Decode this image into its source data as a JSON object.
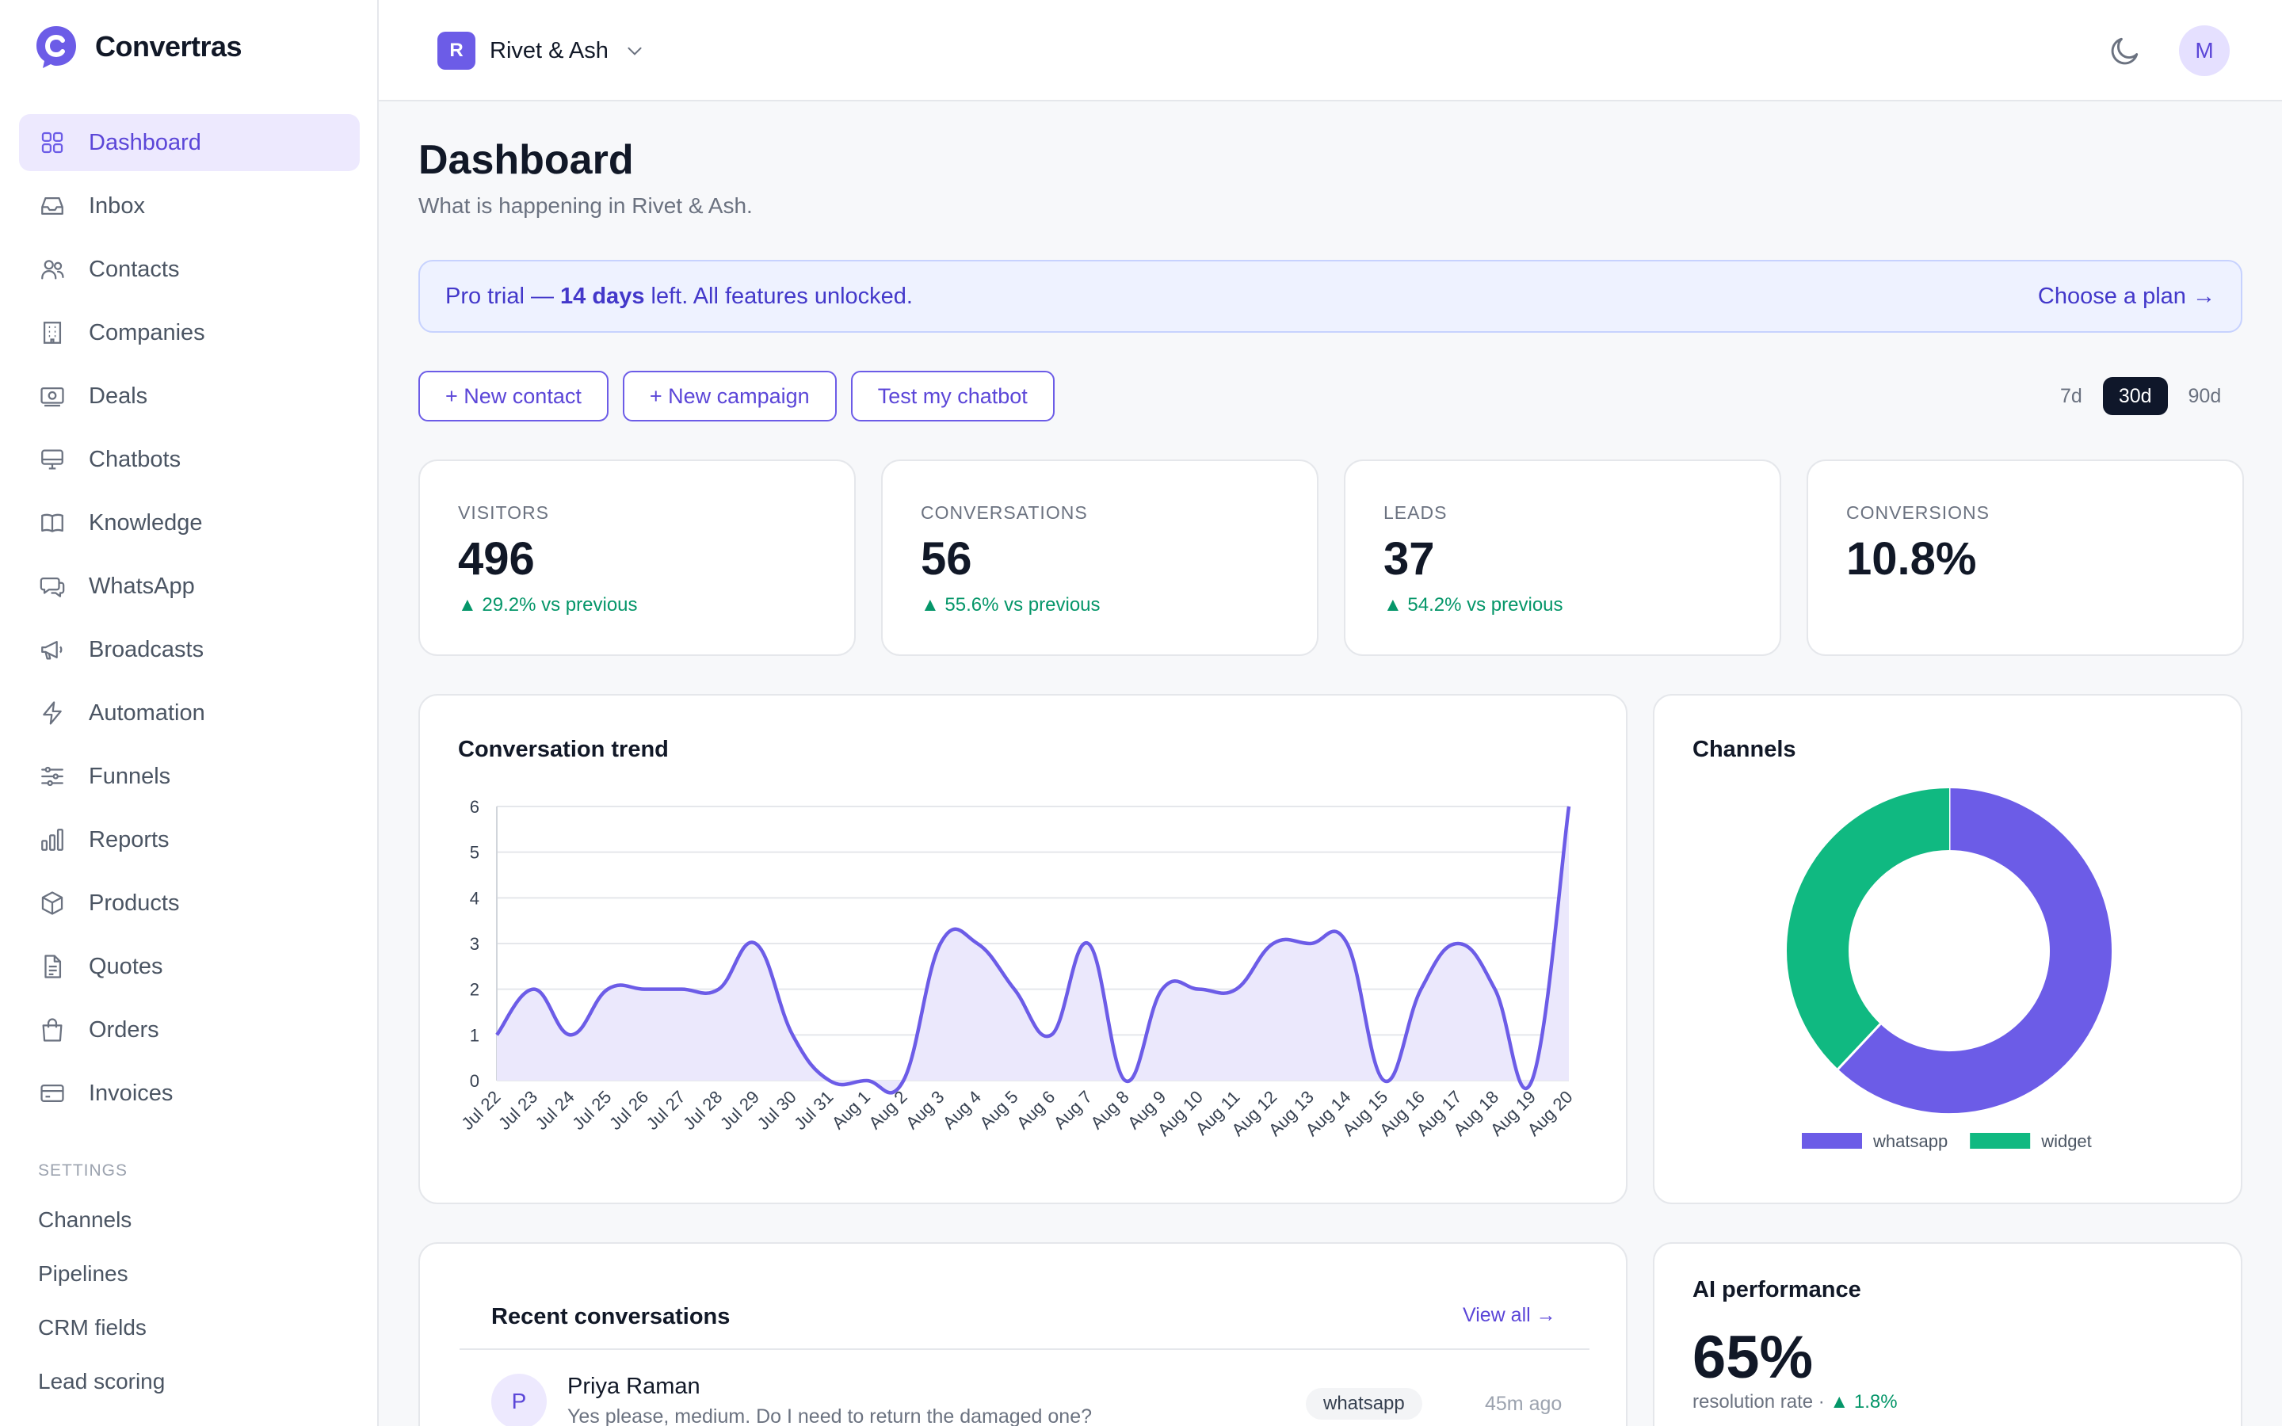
{
  "brand": {
    "name": "Convertras"
  },
  "sidebar": {
    "items": [
      {
        "label": "Dashboard",
        "icon": "grid-icon",
        "active": true
      },
      {
        "label": "Inbox",
        "icon": "inbox-icon"
      },
      {
        "label": "Contacts",
        "icon": "users-icon"
      },
      {
        "label": "Companies",
        "icon": "building-icon"
      },
      {
        "label": "Deals",
        "icon": "banknote-icon"
      },
      {
        "label": "Chatbots",
        "icon": "monitor-icon"
      },
      {
        "label": "Knowledge",
        "icon": "book-icon"
      },
      {
        "label": "WhatsApp",
        "icon": "chat-bubble-icon"
      },
      {
        "label": "Broadcasts",
        "icon": "megaphone-icon"
      },
      {
        "label": "Automation",
        "icon": "lightning-icon"
      },
      {
        "label": "Funnels",
        "icon": "sliders-icon"
      },
      {
        "label": "Reports",
        "icon": "bar-chart-icon"
      },
      {
        "label": "Products",
        "icon": "box-icon"
      },
      {
        "label": "Quotes",
        "icon": "document-icon"
      },
      {
        "label": "Orders",
        "icon": "shopping-bag-icon"
      },
      {
        "label": "Invoices",
        "icon": "credit-card-icon"
      }
    ],
    "settings_heading": "SETTINGS",
    "settings_items": [
      "Channels",
      "Pipelines",
      "CRM fields",
      "Lead scoring"
    ]
  },
  "topbar": {
    "workspace_initial": "R",
    "workspace_name": "Rivet & Ash",
    "avatar_initial": "M"
  },
  "page": {
    "title": "Dashboard",
    "subtitle": "What is happening in Rivet & Ash."
  },
  "trial": {
    "prefix": "Pro trial — ",
    "days": "14 days",
    "suffix": " left. All features unlocked.",
    "cta": "Choose a plan →"
  },
  "actions": [
    "+ New contact",
    "+ New campaign",
    "Test my chatbot"
  ],
  "ranges": {
    "options": [
      "7d",
      "30d",
      "90d"
    ],
    "selected": "30d"
  },
  "stats": [
    {
      "label": "VISITORS",
      "value": "496",
      "change": "▲ 29.2% vs previous"
    },
    {
      "label": "CONVERSATIONS",
      "value": "56",
      "change": "▲ 55.6% vs previous"
    },
    {
      "label": "LEADS",
      "value": "37",
      "change": "▲ 54.2% vs previous"
    },
    {
      "label": "CONVERSIONS",
      "value": "10.8%",
      "change": ""
    }
  ],
  "trend": {
    "title": "Conversation trend"
  },
  "channels": {
    "title": "Channels"
  },
  "recent": {
    "title": "Recent conversations",
    "view_all": "View all →",
    "items": [
      {
        "initial": "P",
        "name": "Priya Raman",
        "message": "Yes please, medium. Do I need to return the damaged one?",
        "channel": "whatsapp",
        "time": "45m ago"
      }
    ]
  },
  "ai": {
    "title": "AI performance",
    "value": "65%",
    "caption": "resolution rate · ",
    "change": "▲ 1.8%"
  },
  "colors": {
    "accent": "#6c5ce7",
    "accent_fill": "#ebe8fc",
    "whatsapp": "#6c5ce7",
    "widget": "#10b981",
    "positive": "#059669"
  },
  "chart_data": [
    {
      "type": "area",
      "title": "Conversation trend",
      "categories": [
        "Jul 22",
        "Jul 23",
        "Jul 24",
        "Jul 25",
        "Jul 26",
        "Jul 27",
        "Jul 28",
        "Jul 29",
        "Jul 30",
        "Jul 31",
        "Aug 1",
        "Aug 2",
        "Aug 3",
        "Aug 4",
        "Aug 5",
        "Aug 6",
        "Aug 7",
        "Aug 8",
        "Aug 9",
        "Aug 10",
        "Aug 11",
        "Aug 12",
        "Aug 13",
        "Aug 14",
        "Aug 15",
        "Aug 16",
        "Aug 17",
        "Aug 18",
        "Aug 19",
        "Aug 20"
      ],
      "values": [
        1,
        2,
        1,
        2,
        2,
        2,
        2,
        3,
        1,
        0,
        0,
        0,
        3,
        3,
        2,
        1,
        3,
        0,
        2,
        2,
        2,
        3,
        3,
        3,
        0,
        2,
        3,
        2,
        0,
        6
      ],
      "ylim": [
        0,
        6
      ],
      "yticks": [
        0,
        1,
        2,
        3,
        4,
        5,
        6
      ],
      "grid": true,
      "legend": "none"
    },
    {
      "type": "pie",
      "title": "Channels",
      "donut": true,
      "labels": [
        "whatsapp",
        "widget"
      ],
      "values": [
        62,
        38
      ],
      "colors": [
        "#6c5ce7",
        "#10b981"
      ],
      "legend": "bottom"
    }
  ]
}
